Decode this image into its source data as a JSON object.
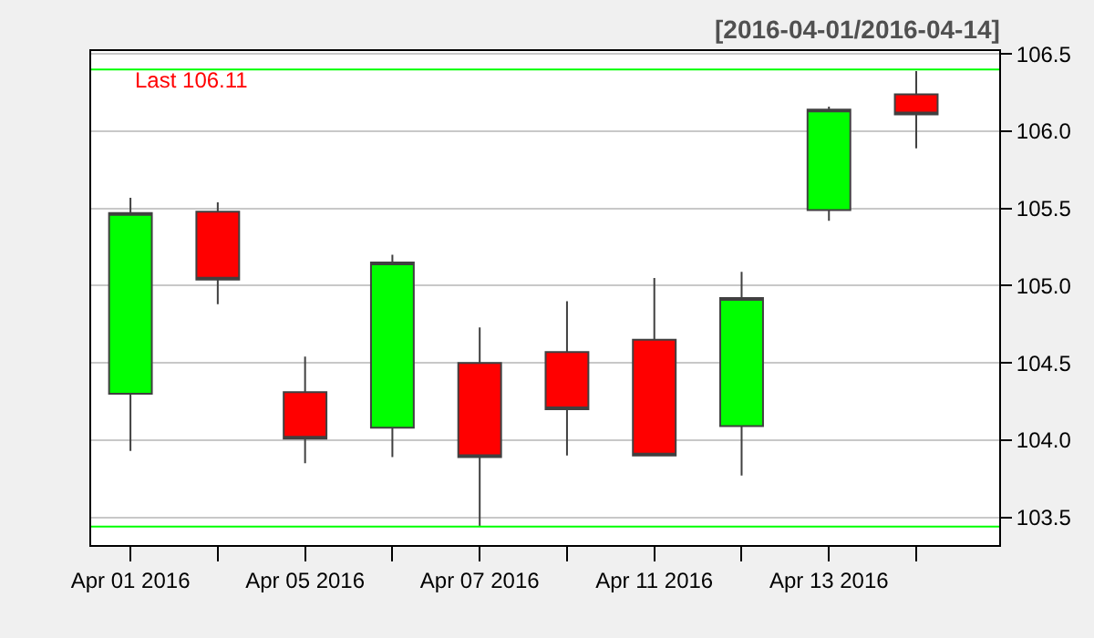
{
  "chart_data": {
    "type": "candlestick",
    "title": "[2016-04-01/2016-04-14]",
    "categories": [
      "Apr 01 2016",
      null,
      "Apr 05 2016",
      null,
      "Apr 07 2016",
      null,
      "Apr 11 2016",
      null,
      "Apr 13 2016",
      null
    ],
    "ohlc": [
      [
        104.3,
        105.57,
        103.93,
        105.47
      ],
      [
        105.48,
        105.54,
        104.88,
        105.04
      ],
      [
        104.31,
        104.54,
        103.85,
        104.01
      ],
      [
        104.08,
        105.2,
        103.89,
        105.15
      ],
      [
        104.5,
        104.73,
        103.44,
        103.89
      ],
      [
        104.57,
        104.9,
        103.9,
        104.2
      ],
      [
        104.65,
        105.05,
        103.9,
        103.9
      ],
      [
        104.09,
        105.09,
        103.77,
        104.92
      ],
      [
        105.49,
        106.16,
        105.42,
        106.14
      ],
      [
        106.24,
        106.39,
        105.89,
        106.11
      ]
    ],
    "colors": [
      "#00ff00",
      "#ff0000",
      "#ff0000",
      "#00ff00",
      "#ff0000",
      "#ff0000",
      "#ff0000",
      "#00ff00",
      "#00ff00",
      "#ff0000"
    ],
    "ylim": [
      103.32,
      106.52
    ],
    "yticks": [
      {
        "value": 103.5,
        "label": "103.5"
      },
      {
        "value": 104.0,
        "label": "104.0"
      },
      {
        "value": 104.5,
        "label": "104.5"
      },
      {
        "value": 105.0,
        "label": "105.0"
      },
      {
        "value": 105.5,
        "label": "105.5"
      },
      {
        "value": 106.0,
        "label": "106.0"
      },
      {
        "value": 106.5,
        "label": "106.5"
      }
    ],
    "ref_lines": [
      {
        "axis": "y",
        "value": 106.4,
        "color": "#00ff00"
      },
      {
        "axis": "y",
        "value": 103.44,
        "color": "#00ff00"
      }
    ],
    "annotations": [
      "Last 106.11"
    ],
    "grid": "y"
  }
}
